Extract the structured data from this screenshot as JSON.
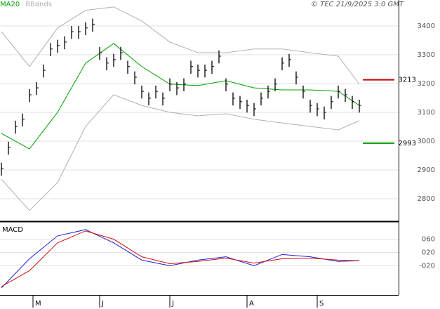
{
  "chart_data": [
    {
      "type": "ohlc",
      "annotation": "© TEC 21/9/2025 3:0 GMT",
      "xlim": [
        -0.2,
        56.6
      ],
      "ylim": [
        2722,
        3490
      ],
      "yticks": [
        2800,
        2900,
        3000,
        3100,
        3200,
        3300,
        3400
      ],
      "grid": true,
      "x": [
        0,
        1,
        2,
        3,
        4,
        5,
        6,
        7,
        8,
        9,
        10,
        11,
        12,
        13,
        14,
        15,
        16,
        17,
        18,
        19,
        20,
        21,
        22,
        23,
        24,
        25,
        26,
        27,
        28,
        29,
        30,
        31,
        32,
        33,
        34,
        35,
        36,
        37,
        38,
        39,
        40,
        41,
        42,
        43,
        44,
        45,
        46,
        47,
        48,
        49,
        50,
        51
      ],
      "high": [
        2925,
        2998,
        3071,
        3096,
        3181,
        3205,
        3266,
        3340,
        3352,
        3364,
        3400,
        3400,
        3413,
        3425,
        3327,
        3291,
        3303,
        3327,
        3279,
        3242,
        3193,
        3169,
        3193,
        3169,
        3218,
        3205,
        3218,
        3279,
        3266,
        3266,
        3279,
        3315,
        3218,
        3169,
        3157,
        3144,
        3132,
        3169,
        3193,
        3218,
        3291,
        3303,
        3242,
        3193,
        3144,
        3132,
        3120,
        3157,
        3193,
        3181,
        3157,
        3144
      ],
      "low": [
        2880,
        2953,
        3026,
        3051,
        3136,
        3160,
        3221,
        3295,
        3307,
        3319,
        3355,
        3355,
        3368,
        3380,
        3282,
        3246,
        3258,
        3282,
        3234,
        3197,
        3148,
        3124,
        3148,
        3124,
        3173,
        3160,
        3173,
        3234,
        3221,
        3221,
        3234,
        3270,
        3173,
        3124,
        3112,
        3099,
        3087,
        3124,
        3148,
        3173,
        3246,
        3258,
        3197,
        3148,
        3099,
        3087,
        3075,
        3112,
        3148,
        3136,
        3112,
        3099
      ],
      "close": [
        2905,
        2978,
        3051,
        3076,
        3161,
        3185,
        3246,
        3320,
        3332,
        3344,
        3380,
        3380,
        3393,
        3405,
        3307,
        3271,
        3283,
        3307,
        3259,
        3222,
        3173,
        3149,
        3173,
        3149,
        3198,
        3185,
        3198,
        3259,
        3246,
        3246,
        3259,
        3295,
        3198,
        3149,
        3137,
        3124,
        3112,
        3149,
        3173,
        3198,
        3271,
        3283,
        3222,
        3173,
        3124,
        3112,
        3100,
        3137,
        3173,
        3161,
        3137,
        3124
      ],
      "bar_color": "#000000",
      "series": [
        {
          "name": "MA20",
          "color": "#00a000",
          "x": [
            0,
            4,
            8,
            12,
            16,
            20,
            24,
            28,
            32,
            36,
            40,
            44,
            48,
            51
          ],
          "values": [
            3027,
            2973,
            3100,
            3271,
            3339,
            3259,
            3198,
            3193,
            3210,
            3185,
            3178,
            3178,
            3173,
            3124
          ]
        },
        {
          "name": "BBands",
          "color": "#b0b0b0",
          "x": [
            0,
            4,
            8,
            12,
            16,
            20,
            24,
            28,
            32,
            36,
            40,
            44,
            48,
            51
          ],
          "values": [
            3380,
            3259,
            3393,
            3454,
            3466,
            3417,
            3344,
            3307,
            3307,
            3320,
            3320,
            3307,
            3295,
            3198
          ]
        },
        {
          "color": "#b0b0b0",
          "x": [
            0,
            4,
            8,
            12,
            16,
            20,
            24,
            28,
            32,
            36,
            40,
            44,
            48,
            51
          ],
          "values": [
            2868,
            2759,
            2856,
            3051,
            3161,
            3124,
            3100,
            3088,
            3095,
            3076,
            3063,
            3051,
            3039,
            3071
          ]
        }
      ],
      "levels": [
        {
          "value": 3213,
          "color": "#cc0000"
        },
        {
          "value": 2993,
          "color": "#009900"
        }
      ]
    },
    {
      "type": "line",
      "title": "MACD",
      "xlim": [
        -0.2,
        56.6
      ],
      "ylim": [
        -104,
        108
      ],
      "yticks": [
        {
          "value": -20,
          "label": "-020"
        },
        {
          "value": 20,
          "label": "020"
        },
        {
          "value": 60,
          "label": "060"
        }
      ],
      "xticks": [
        {
          "value": 4.5,
          "label": "M"
        },
        {
          "value": 14,
          "label": "J"
        },
        {
          "value": 24,
          "label": "J"
        },
        {
          "value": 35,
          "label": "A"
        },
        {
          "value": 45,
          "label": "S"
        }
      ],
      "grid": true,
      "series": [
        {
          "color": "#1f1fd0",
          "x": [
            0,
            4,
            8,
            12,
            16,
            20,
            24,
            28,
            32,
            36,
            40,
            44,
            48,
            51
          ],
          "values": [
            -87,
            1,
            70,
            89,
            49,
            -3,
            -20,
            -3,
            7,
            -20,
            14,
            7,
            -7,
            -5
          ]
        },
        {
          "color": "#d01010",
          "x": [
            0,
            4,
            8,
            12,
            16,
            20,
            24,
            28,
            32,
            36,
            40,
            44,
            48,
            51
          ],
          "values": [
            -83,
            -35,
            49,
            85,
            60,
            7,
            -14,
            -7,
            3,
            -12,
            1,
            3,
            -3,
            -5
          ]
        }
      ]
    }
  ]
}
